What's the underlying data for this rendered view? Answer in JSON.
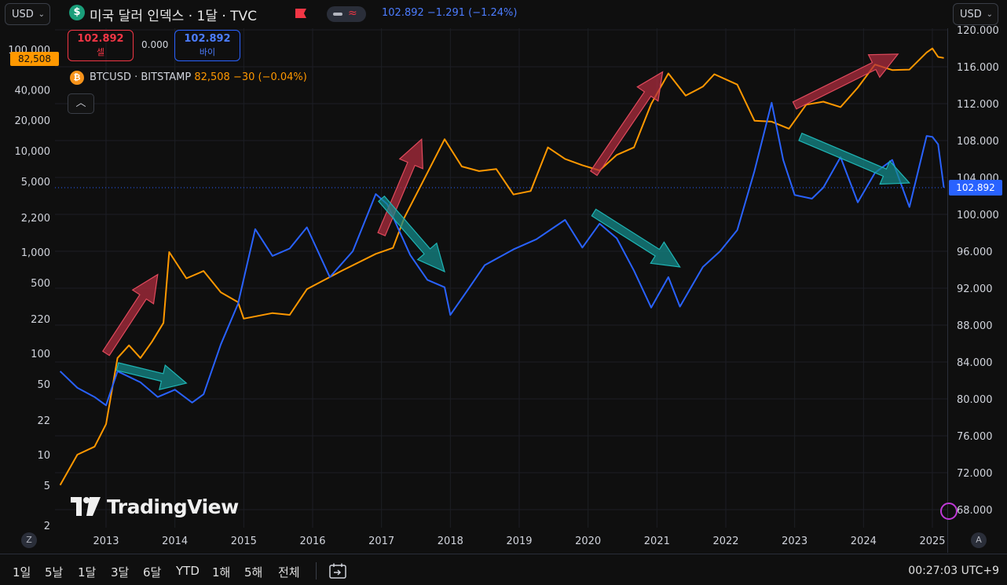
{
  "header": {
    "currency_left": "USD",
    "currency_right": "USD",
    "symbol_icon": "dollar-icon",
    "title": "미국 달러 인덱스 · 1달 · TVC",
    "quote_price": "102.892",
    "quote_change": "−1.291 (−1.24%)",
    "sell_price": "102.892",
    "sell_label": "셀",
    "spread": "0.000",
    "buy_price": "102.892",
    "buy_label": "바이",
    "overlay_symbol": "BTCUSD · BITSTAMP",
    "overlay_quote": "82,508  −30 (−0.04%)",
    "collapse_icon": "chevron-up-icon"
  },
  "price_badges": {
    "btc_last": "82,508",
    "dxy_last": "102.892"
  },
  "watermark": "TradingView",
  "axis_buttons": {
    "left": "Z",
    "right": "A"
  },
  "toolbar": {
    "timeframes": [
      "1일",
      "5날",
      "1달",
      "3달",
      "6달",
      "YTD",
      "1해",
      "5해",
      "전체"
    ],
    "clock": "00:27:03 UTC+9"
  },
  "colors": {
    "background": "#0f0f0f",
    "dxy_line": "#2962ff",
    "btc_line": "#ff9800",
    "up_arrow": "#b22d3f",
    "down_arrow": "#138c8c",
    "sell": "#f23645",
    "buy": "#2962ff"
  },
  "chart_data": {
    "type": "line",
    "x_axis": {
      "ticks": [
        "2013",
        "2014",
        "2015",
        "2016",
        "2017",
        "2018",
        "2019",
        "2020",
        "2021",
        "2022",
        "2023",
        "2024",
        "2025"
      ],
      "range": [
        "2012-05",
        "2025-04"
      ]
    },
    "left_axis": {
      "scale": "log",
      "ticks": [
        "100,000",
        "40,000",
        "20,000",
        "10,000",
        "5,000",
        "2,200",
        "1,000",
        "500",
        "220",
        "100",
        "50",
        "22",
        "10",
        "5",
        "2"
      ],
      "tick_values": [
        100000,
        40000,
        20000,
        10000,
        5000,
        2200,
        1000,
        500,
        220,
        100,
        50,
        22,
        10,
        5,
        2
      ]
    },
    "right_axis": {
      "scale": "linear",
      "ticks": [
        "120.000",
        "116.000",
        "112.000",
        "108.000",
        "104.000",
        "100.000",
        "96.000",
        "92.000",
        "88.000",
        "84.000",
        "80.000",
        "76.000",
        "72.000",
        "68.000"
      ],
      "range": [
        66.7,
        121.6
      ]
    },
    "series": [
      {
        "name": "BTCUSD",
        "axis": "left",
        "color": "#ff9800",
        "points": [
          [
            "2012-05",
            5
          ],
          [
            "2012-08",
            10
          ],
          [
            "2012-11",
            12
          ],
          [
            "2013-01",
            20
          ],
          [
            "2013-03",
            90
          ],
          [
            "2013-05",
            120
          ],
          [
            "2013-07",
            90
          ],
          [
            "2013-09",
            130
          ],
          [
            "2013-11",
            200
          ],
          [
            "2013-12",
            1000
          ],
          [
            "2014-03",
            550
          ],
          [
            "2014-06",
            650
          ],
          [
            "2014-09",
            400
          ],
          [
            "2014-12",
            320
          ],
          [
            "2015-01",
            220
          ],
          [
            "2015-06",
            250
          ],
          [
            "2015-09",
            240
          ],
          [
            "2015-12",
            430
          ],
          [
            "2016-06",
            650
          ],
          [
            "2016-12",
            960
          ],
          [
            "2017-03",
            1100
          ],
          [
            "2017-05",
            2200
          ],
          [
            "2017-08",
            4700
          ],
          [
            "2017-12",
            13000
          ],
          [
            "2018-03",
            7000
          ],
          [
            "2018-06",
            6300
          ],
          [
            "2018-09",
            6600
          ],
          [
            "2018-12",
            3700
          ],
          [
            "2019-03",
            4000
          ],
          [
            "2019-06",
            10800
          ],
          [
            "2019-09",
            8300
          ],
          [
            "2019-12",
            7200
          ],
          [
            "2020-03",
            6400
          ],
          [
            "2020-06",
            9100
          ],
          [
            "2020-09",
            10800
          ],
          [
            "2020-12",
            29000
          ],
          [
            "2021-03",
            58000
          ],
          [
            "2021-06",
            35000
          ],
          [
            "2021-09",
            43000
          ],
          [
            "2021-11",
            57000
          ],
          [
            "2022-03",
            45000
          ],
          [
            "2022-06",
            19800
          ],
          [
            "2022-09",
            19400
          ],
          [
            "2022-12",
            16500
          ],
          [
            "2023-03",
            28500
          ],
          [
            "2023-06",
            30500
          ],
          [
            "2023-09",
            27000
          ],
          [
            "2023-12",
            42000
          ],
          [
            "2024-03",
            71000
          ],
          [
            "2024-06",
            62700
          ],
          [
            "2024-09",
            63300
          ],
          [
            "2024-12",
            93400
          ],
          [
            "2025-01",
            102400
          ],
          [
            "2025-02",
            84400
          ],
          [
            "2025-03",
            82508
          ]
        ]
      },
      {
        "name": "DXY",
        "axis": "right",
        "color": "#2962ff",
        "points": [
          [
            "2012-05",
            83.0
          ],
          [
            "2012-08",
            81.2
          ],
          [
            "2012-11",
            80.2
          ],
          [
            "2013-01",
            79.3
          ],
          [
            "2013-03",
            83.0
          ],
          [
            "2013-07",
            81.8
          ],
          [
            "2013-10",
            80.2
          ],
          [
            "2014-01",
            81.0
          ],
          [
            "2014-04",
            79.6
          ],
          [
            "2014-06",
            80.5
          ],
          [
            "2014-09",
            85.9
          ],
          [
            "2014-12",
            90.3
          ],
          [
            "2015-03",
            98.4
          ],
          [
            "2015-06",
            95.5
          ],
          [
            "2015-09",
            96.3
          ],
          [
            "2015-12",
            98.6
          ],
          [
            "2016-04",
            93.2
          ],
          [
            "2016-08",
            96.0
          ],
          [
            "2016-12",
            102.2
          ],
          [
            "2017-02",
            101.1
          ],
          [
            "2017-06",
            95.6
          ],
          [
            "2017-09",
            92.9
          ],
          [
            "2017-12",
            92.1
          ],
          [
            "2018-01",
            89.1
          ],
          [
            "2018-04",
            91.8
          ],
          [
            "2018-07",
            94.5
          ],
          [
            "2018-12",
            96.2
          ],
          [
            "2019-04",
            97.3
          ],
          [
            "2019-09",
            99.4
          ],
          [
            "2019-12",
            96.4
          ],
          [
            "2020-03",
            99.0
          ],
          [
            "2020-06",
            97.4
          ],
          [
            "2020-09",
            93.9
          ],
          [
            "2020-12",
            89.9
          ],
          [
            "2021-03",
            93.2
          ],
          [
            "2021-05",
            90.0
          ],
          [
            "2021-09",
            94.3
          ],
          [
            "2021-12",
            96.0
          ],
          [
            "2022-03",
            98.3
          ],
          [
            "2022-06",
            104.7
          ],
          [
            "2022-09",
            112.1
          ],
          [
            "2022-11",
            105.9
          ],
          [
            "2023-01",
            102.1
          ],
          [
            "2023-04",
            101.7
          ],
          [
            "2023-06",
            102.9
          ],
          [
            "2023-09",
            106.2
          ],
          [
            "2023-12",
            101.3
          ],
          [
            "2024-03",
            104.5
          ],
          [
            "2024-06",
            105.9
          ],
          [
            "2024-09",
            100.8
          ],
          [
            "2024-12",
            108.5
          ],
          [
            "2025-01",
            108.4
          ],
          [
            "2025-02",
            107.6
          ],
          [
            "2025-03",
            102.892
          ]
        ]
      }
    ],
    "annotations": [
      {
        "kind": "arrow",
        "direction": "up",
        "from": [
          "2013-01",
          100
        ],
        "to": [
          "2013-10",
          600
        ]
      },
      {
        "kind": "arrow",
        "direction": "up",
        "from": [
          "2017-01",
          1500
        ],
        "to": [
          "2017-08",
          13000
        ]
      },
      {
        "kind": "arrow",
        "direction": "up",
        "from": [
          "2020-02",
          6000
        ],
        "to": [
          "2021-02",
          60000
        ]
      },
      {
        "kind": "arrow",
        "direction": "up",
        "from": [
          "2023-01",
          28000
        ],
        "to": [
          "2024-07",
          90000
        ]
      },
      {
        "kind": "arrow",
        "direction": "down",
        "from": [
          "2013-03",
          83.5
        ],
        "to": [
          "2014-03",
          81.7
        ]
      },
      {
        "kind": "arrow",
        "direction": "down",
        "from": [
          "2017-01",
          101.7
        ],
        "to": [
          "2017-12",
          93.8
        ]
      },
      {
        "kind": "arrow",
        "direction": "down",
        "from": [
          "2020-02",
          100.2
        ],
        "to": [
          "2021-05",
          94.3
        ]
      },
      {
        "kind": "arrow",
        "direction": "down",
        "from": [
          "2023-02",
          108.4
        ],
        "to": [
          "2024-09",
          103.4
        ]
      }
    ],
    "grid": true,
    "last_value_line": 102.892
  }
}
